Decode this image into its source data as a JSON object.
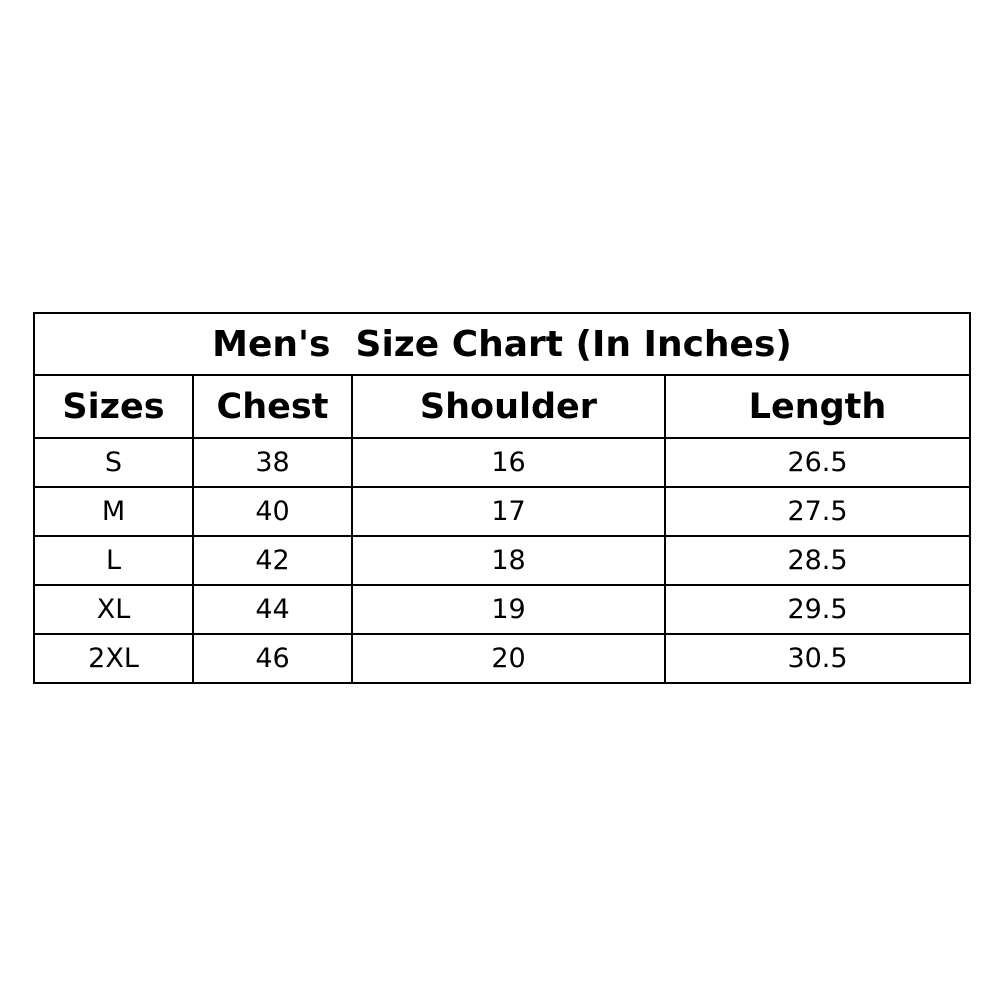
{
  "title": "Men's  Size Chart (In Inches)",
  "columns": [
    "Sizes",
    "Chest",
    "Shoulder",
    "Length"
  ],
  "rows": [
    [
      "S",
      "38",
      "16",
      "26.5"
    ],
    [
      "M",
      "40",
      "17",
      "27.5"
    ],
    [
      "L",
      "42",
      "18",
      "28.5"
    ],
    [
      "XL",
      "44",
      "19",
      "29.5"
    ],
    [
      "2XL",
      "46",
      "20",
      "30.5"
    ]
  ]
}
